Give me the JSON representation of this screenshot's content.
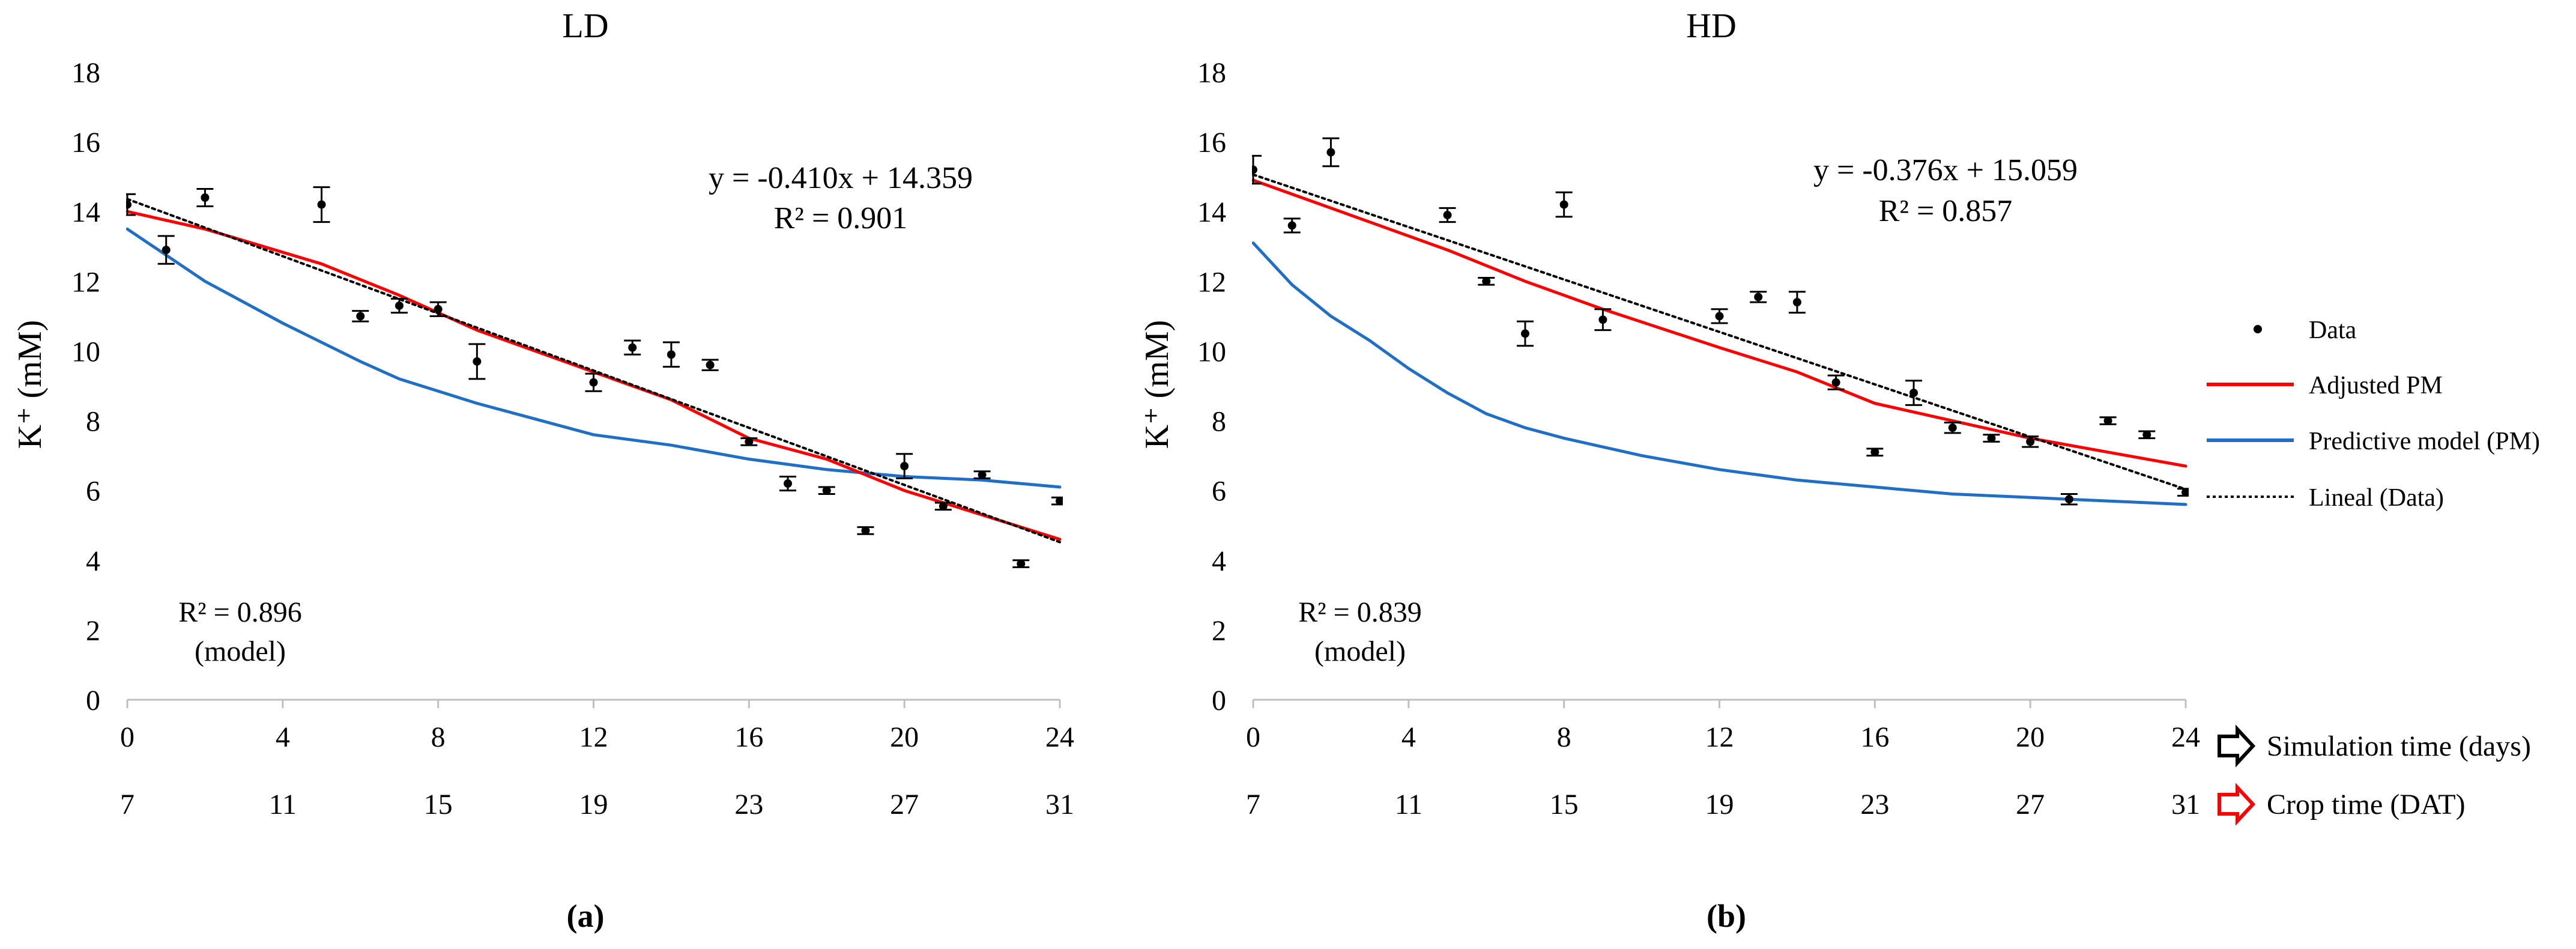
{
  "colors": {
    "axis": "#bfbfbf",
    "text": "#000000",
    "data_point": "#000000",
    "adjusted_pm": "#ff0000",
    "predictive_pm": "#1f6fc6",
    "lineal": "#000000",
    "crop_time": "#ff0000",
    "arrow_crop": "#ff0000",
    "arrow_sim": "#000000"
  },
  "legend": {
    "items": [
      {
        "label": "Data",
        "kind": "point"
      },
      {
        "label": "Adjusted PM",
        "kind": "line-red"
      },
      {
        "label": "Predictive model (PM)",
        "kind": "line-blue"
      },
      {
        "label": "Lineal (Data)",
        "kind": "line-dotted"
      }
    ]
  },
  "axis_annotations": {
    "simulation_label": "Simulation time (days)",
    "crop_label": "Crop time (DAT)"
  },
  "chart_data": [
    {
      "type": "scatter",
      "title": "LD",
      "panel_label": "(a)",
      "ylabel": "K⁺ (mM)",
      "xlabel": "",
      "xlim": [
        0,
        24
      ],
      "ylim": [
        0,
        18
      ],
      "xticks": [
        0,
        4,
        8,
        12,
        16,
        20,
        24
      ],
      "yticks": [
        0,
        2,
        4,
        6,
        8,
        10,
        12,
        14,
        16,
        18
      ],
      "crop_ticks": [
        7,
        11,
        15,
        19,
        23,
        27,
        31
      ],
      "grid": false,
      "equation": "y = -0.410x + 14.359",
      "r2_text": "R² = 0.901",
      "model_r2": "R² = 0.896",
      "model_note": "(model)",
      "data": {
        "x": [
          0,
          1,
          2,
          5,
          6,
          7,
          8,
          9,
          12,
          13,
          14,
          15,
          16,
          17,
          18,
          19,
          20,
          21,
          22,
          23,
          24
        ],
        "y": [
          14.2,
          12.9,
          14.4,
          14.2,
          11.0,
          11.3,
          11.2,
          9.7,
          9.1,
          10.1,
          9.9,
          9.6,
          7.4,
          6.2,
          6.0,
          4.85,
          6.7,
          5.55,
          6.45,
          3.9,
          5.7
        ],
        "err": [
          0.3,
          0.4,
          0.25,
          0.5,
          0.15,
          0.2,
          0.2,
          0.5,
          0.25,
          0.2,
          0.35,
          0.15,
          0.1,
          0.2,
          0.1,
          0.1,
          0.35,
          0.1,
          0.1,
          0.1,
          0.1
        ]
      },
      "series": [
        {
          "name": "Adjusted PM",
          "x": [
            0,
            2,
            5,
            7,
            9,
            12,
            14,
            16,
            18,
            20,
            22,
            24
          ],
          "y": [
            14.0,
            13.5,
            12.5,
            11.6,
            10.6,
            9.4,
            8.6,
            7.5,
            6.9,
            6.0,
            5.3,
            4.6
          ]
        },
        {
          "name": "Predictive model (PM)",
          "x": [
            0,
            2,
            4,
            6,
            7,
            9,
            12,
            14,
            16,
            18,
            20,
            22,
            24
          ],
          "y": [
            13.5,
            12.0,
            10.8,
            9.7,
            9.2,
            8.5,
            7.6,
            7.3,
            6.9,
            6.6,
            6.4,
            6.3,
            6.1
          ]
        },
        {
          "name": "Lineal (Data)",
          "x": [
            0,
            24
          ],
          "y": [
            14.359,
            4.519
          ]
        }
      ]
    },
    {
      "type": "scatter",
      "title": "HD",
      "panel_label": "(b)",
      "ylabel": "K⁺ (mM)",
      "xlabel": "",
      "xlim": [
        0,
        24
      ],
      "ylim": [
        0,
        18
      ],
      "xticks": [
        0,
        4,
        8,
        12,
        16,
        20,
        24
      ],
      "yticks": [
        0,
        2,
        4,
        6,
        8,
        10,
        12,
        14,
        16,
        18
      ],
      "crop_ticks": [
        7,
        11,
        15,
        19,
        23,
        27,
        31
      ],
      "grid": false,
      "equation": "y = -0.376x + 15.059",
      "r2_text": "R² = 0.857",
      "model_r2": "R² = 0.839",
      "model_note": "(model)",
      "data": {
        "x": [
          0,
          1,
          2,
          5,
          6,
          7,
          8,
          9,
          12,
          13,
          14,
          15,
          16,
          17,
          18,
          19,
          20,
          21,
          22,
          23,
          24
        ],
        "y": [
          15.2,
          13.6,
          15.7,
          13.9,
          12.0,
          10.5,
          14.2,
          10.9,
          11.0,
          11.55,
          11.4,
          9.1,
          7.1,
          8.8,
          7.8,
          7.5,
          7.4,
          5.75,
          8.0,
          7.6,
          5.95
        ],
        "err": [
          0.4,
          0.2,
          0.4,
          0.2,
          0.1,
          0.35,
          0.35,
          0.3,
          0.2,
          0.15,
          0.3,
          0.2,
          0.1,
          0.35,
          0.15,
          0.1,
          0.15,
          0.15,
          0.1,
          0.1,
          0.1
        ]
      },
      "series": [
        {
          "name": "Adjusted PM",
          "x": [
            0,
            2,
            5,
            7,
            9,
            12,
            14,
            16,
            18,
            20,
            22,
            24
          ],
          "y": [
            14.9,
            14.1,
            12.9,
            12.0,
            11.2,
            10.1,
            9.4,
            8.5,
            8.0,
            7.5,
            7.1,
            6.7
          ]
        },
        {
          "name": "Predictive model (PM)",
          "x": [
            0,
            1,
            2,
            3,
            4,
            5,
            6,
            7,
            8,
            10,
            12,
            14,
            16,
            18,
            20,
            22,
            24
          ],
          "y": [
            13.1,
            11.9,
            11.0,
            10.3,
            9.5,
            8.8,
            8.2,
            7.8,
            7.5,
            7.0,
            6.6,
            6.3,
            6.1,
            5.9,
            5.8,
            5.7,
            5.6
          ]
        },
        {
          "name": "Lineal (Data)",
          "x": [
            0,
            24
          ],
          "y": [
            15.059,
            6.035
          ]
        }
      ]
    }
  ]
}
